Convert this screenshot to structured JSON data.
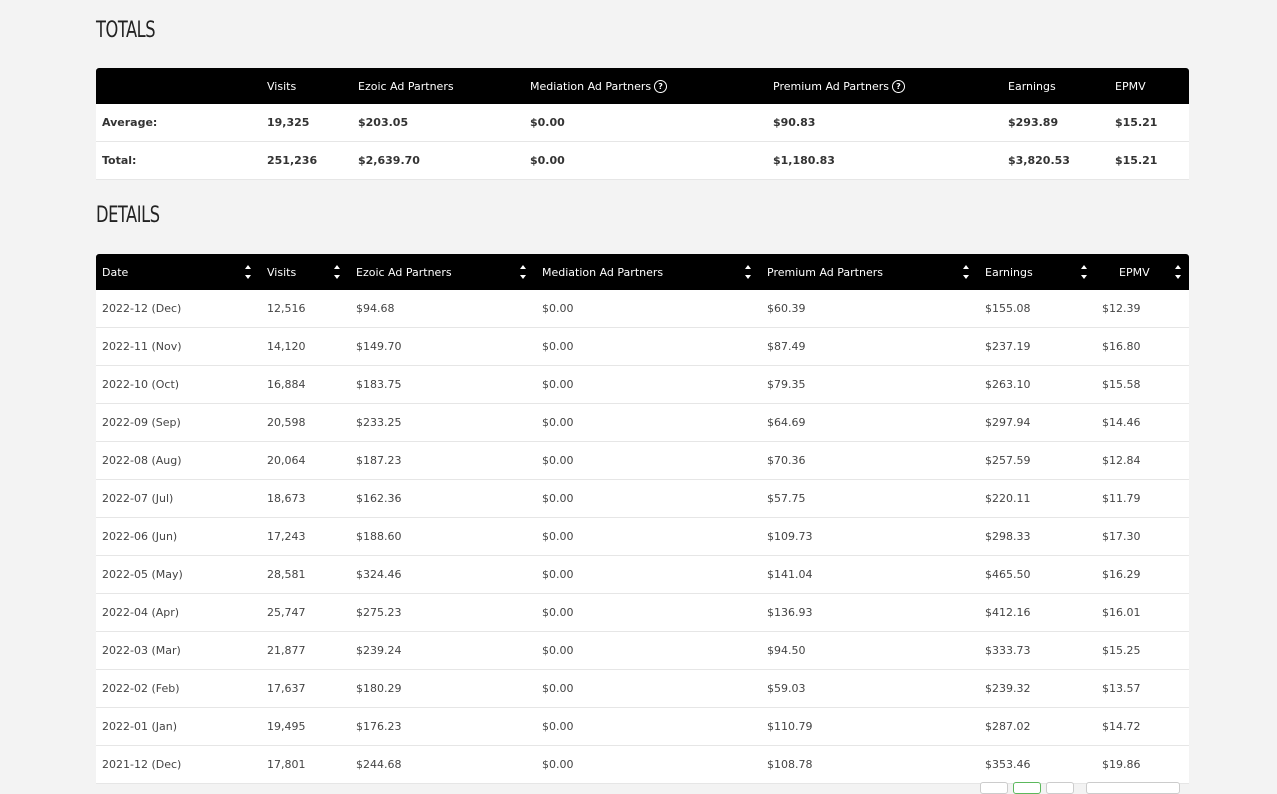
{
  "totals": {
    "title": "TOTALS",
    "headers": [
      "",
      "Visits",
      "Ezoic Ad Partners",
      "Mediation Ad Partners",
      "Premium Ad Partners",
      "Earnings",
      "EPMV"
    ],
    "rows": [
      [
        "Average:",
        "19,325",
        "$203.05",
        "$0.00",
        "$90.83",
        "$293.89",
        "$15.21"
      ],
      [
        "Total:",
        "251,236",
        "$2,639.70",
        "$0.00",
        "$1,180.83",
        "$3,820.53",
        "$15.21"
      ]
    ],
    "help_icon": "question-circle-icon"
  },
  "details": {
    "title": "DETAILS",
    "headers": [
      "Date",
      "Visits",
      "Ezoic Ad Partners",
      "Mediation Ad Partners",
      "Premium Ad Partners",
      "Earnings",
      "EPMV"
    ],
    "sort_icon": "sort-arrows-icon",
    "rows": [
      [
        "2022-12 (Dec)",
        "12,516",
        "$94.68",
        "$0.00",
        "$60.39",
        "$155.08",
        "$12.39"
      ],
      [
        "2022-11 (Nov)",
        "14,120",
        "$149.70",
        "$0.00",
        "$87.49",
        "$237.19",
        "$16.80"
      ],
      [
        "2022-10 (Oct)",
        "16,884",
        "$183.75",
        "$0.00",
        "$79.35",
        "$263.10",
        "$15.58"
      ],
      [
        "2022-09 (Sep)",
        "20,598",
        "$233.25",
        "$0.00",
        "$64.69",
        "$297.94",
        "$14.46"
      ],
      [
        "2022-08 (Aug)",
        "20,064",
        "$187.23",
        "$0.00",
        "$70.36",
        "$257.59",
        "$12.84"
      ],
      [
        "2022-07 (Jul)",
        "18,673",
        "$162.36",
        "$0.00",
        "$57.75",
        "$220.11",
        "$11.79"
      ],
      [
        "2022-06 (Jun)",
        "17,243",
        "$188.60",
        "$0.00",
        "$109.73",
        "$298.33",
        "$17.30"
      ],
      [
        "2022-05 (May)",
        "28,581",
        "$324.46",
        "$0.00",
        "$141.04",
        "$465.50",
        "$16.29"
      ],
      [
        "2022-04 (Apr)",
        "25,747",
        "$275.23",
        "$0.00",
        "$136.93",
        "$412.16",
        "$16.01"
      ],
      [
        "2022-03 (Mar)",
        "21,877",
        "$239.24",
        "$0.00",
        "$94.50",
        "$333.73",
        "$15.25"
      ],
      [
        "2022-02 (Feb)",
        "17,637",
        "$180.29",
        "$0.00",
        "$59.03",
        "$239.32",
        "$13.57"
      ],
      [
        "2022-01 (Jan)",
        "19,495",
        "$176.23",
        "$0.00",
        "$110.79",
        "$287.02",
        "$14.72"
      ],
      [
        "2021-12 (Dec)",
        "17,801",
        "$244.68",
        "$0.00",
        "$108.78",
        "$353.46",
        "$19.86"
      ]
    ]
  },
  "colors": {
    "header_bg": "#000000",
    "page_bg": "#f3f3f3",
    "pager_active": "#5cb85c"
  }
}
